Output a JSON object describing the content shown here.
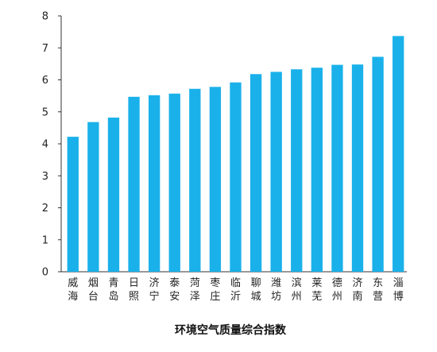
{
  "chart_data": {
    "type": "bar",
    "title": "",
    "xlabel": "环境空气质量综合指数",
    "ylabel": "",
    "ylim": [
      0,
      8
    ],
    "yticks": [
      "0",
      "1",
      "2",
      "3",
      "4",
      "5",
      "6",
      "7",
      "8"
    ],
    "grid": false,
    "legend": "none",
    "bar_color": "#1ab1ea",
    "categories": [
      "威海",
      "烟台",
      "青岛",
      "日照",
      "济宁",
      "泰安",
      "菏泽",
      "枣庄",
      "临沂",
      "聊城",
      "潍坊",
      "滨州",
      "莱芜",
      "德州",
      "济南",
      "东营",
      "淄博"
    ],
    "values": [
      4.22,
      4.68,
      4.82,
      5.47,
      5.52,
      5.57,
      5.72,
      5.78,
      5.92,
      6.18,
      6.25,
      6.33,
      6.38,
      6.47,
      6.48,
      6.72,
      7.37
    ]
  }
}
